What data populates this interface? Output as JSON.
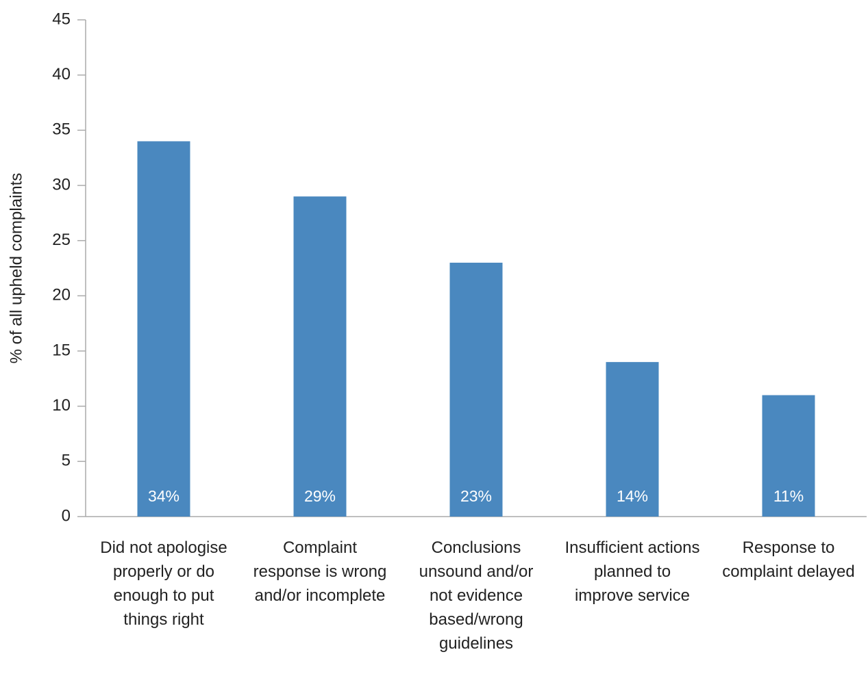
{
  "chart_data": {
    "type": "bar",
    "y_label": "% of all upheld complaints",
    "categories": [
      "Did not apologise properly or do enough to put things right",
      "Complaint response is wrong and/or incomplete",
      "Conclusions unsound and/or not evidence based/wrong guidelines",
      "Insufficient actions planned to improve service",
      "Response to complaint delayed"
    ],
    "values": [
      34,
      29,
      23,
      14,
      11
    ],
    "value_labels": [
      "34%",
      "29%",
      "23%",
      "14%",
      "11%"
    ],
    "color": "#4a88bf",
    "ylim": [
      0,
      45
    ],
    "yticks": [
      0,
      5,
      10,
      15,
      20,
      25,
      30,
      35,
      40,
      45
    ],
    "grid": false
  }
}
